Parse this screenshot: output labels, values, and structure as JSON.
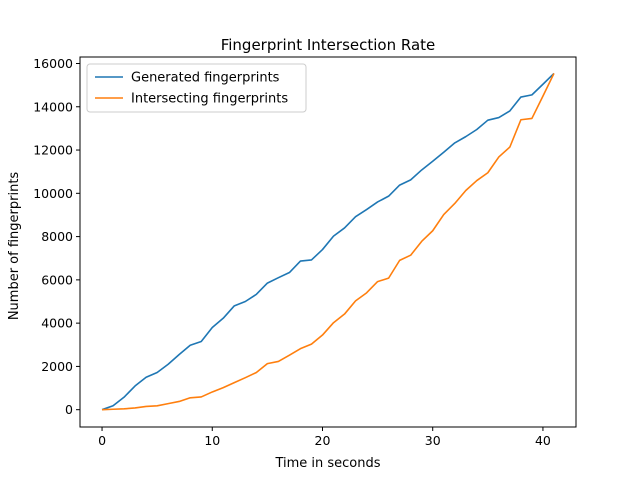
{
  "chart_data": {
    "type": "line",
    "title": "Fingerprint Intersection Rate",
    "xlabel": "Time in seconds",
    "ylabel": "Number of fingerprints",
    "xlim": [
      -2,
      43
    ],
    "ylim": [
      -800,
      16300
    ],
    "xticks": [
      0,
      10,
      20,
      30,
      40
    ],
    "yticks": [
      0,
      2000,
      4000,
      6000,
      8000,
      10000,
      12000,
      14000,
      16000
    ],
    "grid": false,
    "legend_position": "top-left",
    "x": [
      0,
      1,
      2,
      3,
      4,
      5,
      6,
      7,
      8,
      9,
      10,
      11,
      12,
      13,
      14,
      15,
      16,
      17,
      18,
      19,
      20,
      21,
      22,
      23,
      24,
      25,
      26,
      27,
      28,
      29,
      30,
      31,
      32,
      33,
      34,
      35,
      36,
      37,
      38,
      39,
      40,
      41
    ],
    "series": [
      {
        "name": "Generated fingerprints",
        "color": "#1f77b4",
        "values": [
          0,
          180,
          580,
          1100,
          1500,
          1720,
          2100,
          2550,
          2980,
          3150,
          3800,
          4230,
          4800,
          5000,
          5330,
          5850,
          6100,
          6340,
          6870,
          6920,
          7400,
          8020,
          8400,
          8920,
          9250,
          9600,
          9870,
          10380,
          10620,
          11080,
          11480,
          11900,
          12330,
          12620,
          12950,
          13380,
          13500,
          13810,
          14450,
          14550,
          15040,
          15540
        ]
      },
      {
        "name": "Intersecting fingerprints",
        "color": "#ff7f0e",
        "values": [
          0,
          20,
          40,
          80,
          150,
          180,
          280,
          380,
          550,
          590,
          820,
          1020,
          1250,
          1480,
          1720,
          2130,
          2230,
          2520,
          2820,
          3030,
          3450,
          4020,
          4420,
          5030,
          5400,
          5920,
          6080,
          6900,
          7140,
          7780,
          8270,
          9020,
          9530,
          10130,
          10590,
          10950,
          11680,
          12140,
          13400,
          13460,
          14490,
          15540
        ]
      }
    ]
  }
}
